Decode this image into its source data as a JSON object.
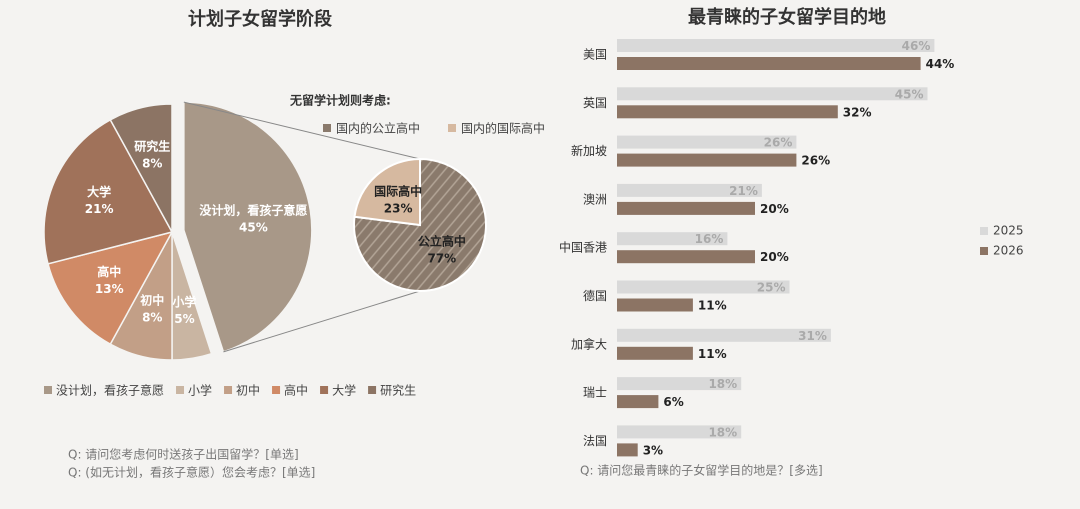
{
  "chart_data": [
    {
      "type": "pie",
      "title": "计划子女留学阶段",
      "categories": [
        "没计划，看孩子意愿",
        "小学",
        "初中",
        "高中",
        "大学",
        "研究生"
      ],
      "values": [
        45,
        5,
        8,
        13,
        21,
        8
      ],
      "value_labels": [
        "45%",
        "5%",
        "8%",
        "13%",
        "21%",
        "8%"
      ],
      "colors": [
        "#a89888",
        "#c9b5a2",
        "#c29f87",
        "#d08a66",
        "#a0725a",
        "#8c7464"
      ],
      "sub_pie": {
        "title": "无留学计划则考虑:",
        "categories": [
          "国内的公立高中",
          "国内的国际高中"
        ],
        "slice_labels": [
          "公立高中",
          "国际高中"
        ],
        "values": [
          77,
          23
        ],
        "value_labels": [
          "77%",
          "23%"
        ],
        "colors": [
          "#8a7a6c",
          "#d6b9a0"
        ]
      },
      "notes": [
        "Q: 请问您考虑何时送孩子出国留学？[单选]",
        "Q: (如无计划，看孩子意愿）您会考虑？[单选]"
      ]
    },
    {
      "type": "bar",
      "orientation": "horizontal",
      "title": "最青睐的子女留学目的地",
      "categories": [
        "美国",
        "英国",
        "新加坡",
        "澳洲",
        "中国香港",
        "德国",
        "加拿大",
        "瑞士",
        "法国"
      ],
      "series": [
        {
          "name": "2025",
          "color": "#d9d9d9",
          "values": [
            46,
            45,
            26,
            21,
            16,
            25,
            31,
            18,
            18
          ],
          "value_labels": [
            "46%",
            "45%",
            "26%",
            "21%",
            "16%",
            "25%",
            "31%",
            "18%",
            "18%"
          ]
        },
        {
          "name": "2026",
          "color": "#8c7464",
          "values": [
            44,
            32,
            26,
            20,
            20,
            11,
            11,
            6,
            3
          ],
          "value_labels": [
            "44%",
            "32%",
            "26%",
            "20%",
            "20%",
            "11%",
            "11%",
            "6%",
            "3%"
          ]
        }
      ],
      "notes": [
        "Q: 请问您最青睐的子女留学目的地是？[多选]"
      ]
    }
  ]
}
